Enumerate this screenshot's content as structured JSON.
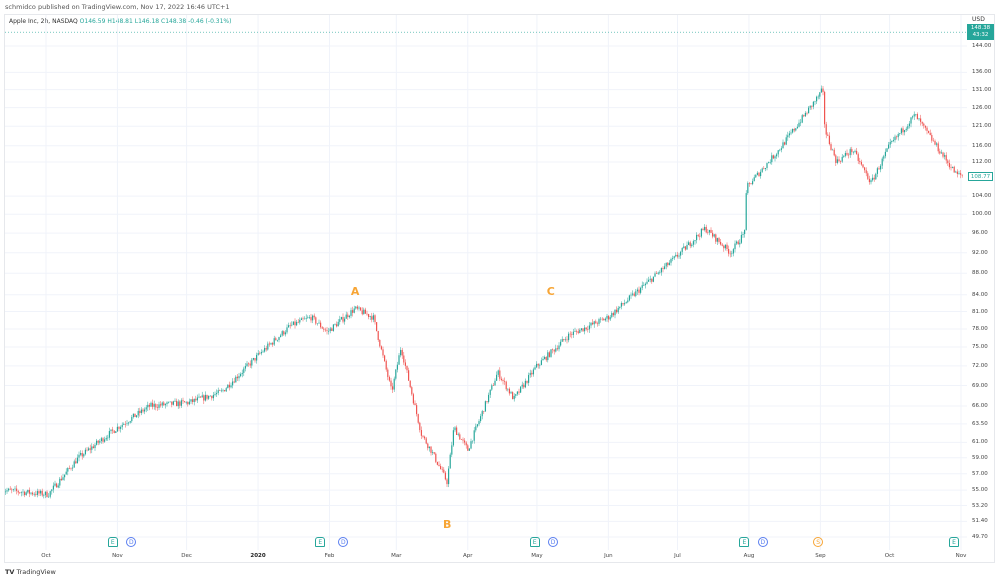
{
  "publisher_line": "schmidco published on TradingView.com, Nov 17, 2022 16:46 UTC+1",
  "legend": {
    "symbol": "Apple Inc, 2h, NASDAQ",
    "open": "O146.59",
    "high": "H148.81",
    "low": "L146.18",
    "close": "C148.38",
    "change": "-0.46 (-0.31%)"
  },
  "price_axis": {
    "currency": "USD",
    "last_price": "148.38",
    "countdown": "43:32",
    "highlight_price": "108.77",
    "ticks": [
      "144.00",
      "136.00",
      "131.00",
      "126.00",
      "121.00",
      "116.00",
      "112.00",
      "104.00",
      "100.00",
      "96.00",
      "92.00",
      "88.00",
      "84.00",
      "81.00",
      "78.00",
      "75.00",
      "72.00",
      "69.00",
      "66.00",
      "63.50",
      "61.00",
      "59.00",
      "57.00",
      "55.00",
      "53.20",
      "51.40",
      "49.70"
    ]
  },
  "time_axis": {
    "months": [
      {
        "label": "Oct",
        "date": "2019-10-01"
      },
      {
        "label": "Nov",
        "date": "2019-11-01"
      },
      {
        "label": "Dec",
        "date": "2019-12-01"
      },
      {
        "label": "2020",
        "date": "2020-01-01",
        "bold": true
      },
      {
        "label": "Feb",
        "date": "2020-02-01"
      },
      {
        "label": "Mar",
        "date": "2020-03-01"
      },
      {
        "label": "Apr",
        "date": "2020-04-01"
      },
      {
        "label": "May",
        "date": "2020-05-01"
      },
      {
        "label": "Jun",
        "date": "2020-06-01"
      },
      {
        "label": "Jul",
        "date": "2020-07-01"
      },
      {
        "label": "Aug",
        "date": "2020-08-01"
      },
      {
        "label": "Sep",
        "date": "2020-09-01"
      },
      {
        "label": "Oct",
        "date": "2020-10-01"
      },
      {
        "label": "Nov",
        "date": "2020-11-01"
      }
    ]
  },
  "events": [
    {
      "type": "E",
      "label": "E",
      "date": "2019-10-30"
    },
    {
      "type": "D",
      "label": "D",
      "date": "2019-11-07"
    },
    {
      "type": "E",
      "label": "E",
      "date": "2020-01-28"
    },
    {
      "type": "D",
      "label": "D",
      "date": "2020-02-07"
    },
    {
      "type": "E",
      "label": "E",
      "date": "2020-04-30"
    },
    {
      "type": "D",
      "label": "D",
      "date": "2020-05-08"
    },
    {
      "type": "E",
      "label": "E",
      "date": "2020-07-30"
    },
    {
      "type": "D",
      "label": "D",
      "date": "2020-08-07"
    },
    {
      "type": "S",
      "label": "S",
      "date": "2020-08-31"
    },
    {
      "type": "E",
      "label": "E",
      "date": "2020-10-29"
    }
  ],
  "annotations": [
    {
      "label": "A",
      "date": "2020-02-12",
      "price": 84.5
    },
    {
      "label": "B",
      "date": "2020-03-23",
      "price": 51.0
    },
    {
      "label": "C",
      "date": "2020-05-07",
      "price": 84.5
    }
  ],
  "watermark": "TradingView",
  "colors": {
    "up": "#26a69a",
    "down": "#ef5350",
    "accent": "#26a69a",
    "annotation": "#f7a535"
  },
  "chart_data": {
    "type": "candlestick",
    "scale": "log",
    "ylim": [
      49.7,
      148.38
    ],
    "grid": true,
    "approx_price_path": [
      [
        "2019-09-12",
        55
      ],
      [
        "2019-10-02",
        54.5
      ],
      [
        "2019-10-15",
        59
      ],
      [
        "2019-11-01",
        63
      ],
      [
        "2019-11-15",
        66
      ],
      [
        "2019-12-02",
        66.5
      ],
      [
        "2019-12-16",
        68
      ],
      [
        "2020-01-02",
        74
      ],
      [
        "2020-01-15",
        78.5
      ],
      [
        "2020-01-24",
        80
      ],
      [
        "2020-01-31",
        77.5
      ],
      [
        "2020-02-12",
        81.5
      ],
      [
        "2020-02-20",
        80
      ],
      [
        "2020-02-28",
        68
      ],
      [
        "2020-03-03",
        75
      ],
      [
        "2020-03-09",
        66
      ],
      [
        "2020-03-12",
        62
      ],
      [
        "2020-03-16",
        60
      ],
      [
        "2020-03-23",
        56
      ],
      [
        "2020-03-26",
        63
      ],
      [
        "2020-04-01",
        60
      ],
      [
        "2020-04-14",
        71
      ],
      [
        "2020-04-21",
        67
      ],
      [
        "2020-05-01",
        72
      ],
      [
        "2020-05-15",
        77
      ],
      [
        "2020-06-01",
        80
      ],
      [
        "2020-06-12",
        84
      ],
      [
        "2020-06-30",
        91
      ],
      [
        "2020-07-13",
        97
      ],
      [
        "2020-07-24",
        92
      ],
      [
        "2020-07-30",
        96
      ],
      [
        "2020-07-31",
        106
      ],
      [
        "2020-08-14",
        115
      ],
      [
        "2020-08-31",
        129
      ],
      [
        "2020-09-02",
        131
      ],
      [
        "2020-09-03",
        120
      ],
      [
        "2020-09-08",
        112
      ],
      [
        "2020-09-15",
        115
      ],
      [
        "2020-09-23",
        107
      ],
      [
        "2020-10-01",
        116
      ],
      [
        "2020-10-12",
        124
      ],
      [
        "2020-10-20",
        117
      ],
      [
        "2020-10-30",
        109
      ],
      [
        "2020-11-02",
        108.77
      ]
    ]
  }
}
